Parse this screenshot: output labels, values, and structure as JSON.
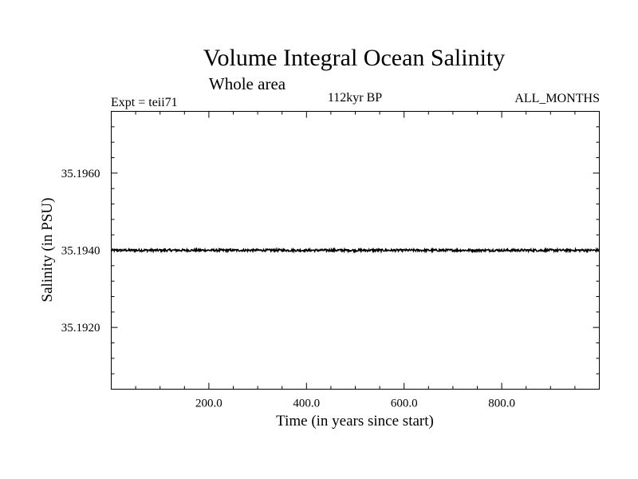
{
  "chart_data": {
    "type": "line",
    "title": "Volume Integral Ocean Salinity",
    "subtitle": "Whole area",
    "annotations": {
      "left": "Expt = teii71",
      "center": "112kyr BP",
      "right": "ALL_MONTHS"
    },
    "xlabel": "Time (in years since start)",
    "ylabel": "Salinity (in PSU)",
    "xlim": [
      0,
      1000
    ],
    "ylim": [
      35.1904,
      35.1976
    ],
    "x_ticks": [
      200,
      400,
      600,
      800
    ],
    "x_tick_labels": [
      "200.0",
      "400.0",
      "600.0",
      "800.0"
    ],
    "x_minor_step": 50,
    "y_ticks": [
      35.192,
      35.194,
      35.196
    ],
    "y_tick_labels": [
      "35.1920",
      "35.1940",
      "35.1960"
    ],
    "y_minor_step": 0.0004,
    "grid": false,
    "series": [
      {
        "color": "#000000",
        "mean": 35.194,
        "noise_amplitude": 3e-05,
        "x_start": 0,
        "x_end": 1000,
        "points": 1000
      }
    ]
  }
}
